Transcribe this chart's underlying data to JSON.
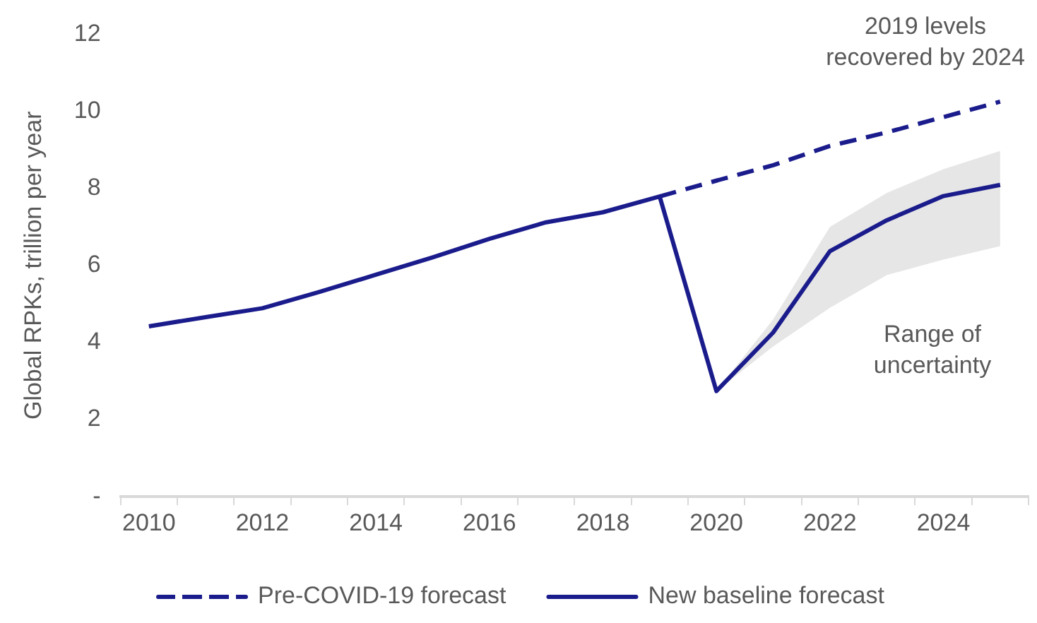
{
  "chart_data": {
    "type": "line",
    "ylabel": "Global RPKs, trillion per year",
    "categories": [
      "2010",
      null,
      "2012",
      null,
      "2014",
      null,
      "2016",
      null,
      "2018",
      null,
      "2020",
      null,
      "2022",
      null,
      "2024",
      null
    ],
    "series": [
      {
        "name": "Pre-COVID-19 forecast",
        "color": "#1b1c8c",
        "line_style": "dashed",
        "values": [
          null,
          null,
          null,
          null,
          null,
          null,
          null,
          null,
          null,
          7.79,
          8.2,
          8.6,
          9.1,
          9.45,
          9.85,
          10.25
        ]
      },
      {
        "name": "New baseline forecast",
        "color": "#1b1c8c",
        "line_style": "solid",
        "values": [
          4.42,
          4.66,
          4.89,
          5.31,
          5.76,
          6.21,
          6.69,
          7.12,
          7.38,
          7.79,
          2.74,
          4.26,
          6.37,
          7.17,
          7.8,
          8.09
        ],
        "lower": [
          null,
          null,
          null,
          null,
          null,
          null,
          null,
          null,
          null,
          null,
          2.74,
          3.9,
          4.9,
          5.75,
          6.15,
          6.5
        ],
        "upper": [
          null,
          null,
          null,
          null,
          null,
          null,
          null,
          null,
          null,
          null,
          2.74,
          4.6,
          7.0,
          7.88,
          8.5,
          8.97
        ]
      }
    ],
    "ylim": [
      0,
      12
    ],
    "yticks": [
      {
        "value": 0,
        "label": "-"
      },
      2,
      4,
      6,
      8,
      10,
      12
    ],
    "grid": false,
    "legend": "bottom",
    "marker": "none",
    "annotations": [
      "2019 levels recovered by 2024",
      "Range of uncertainty"
    ]
  }
}
